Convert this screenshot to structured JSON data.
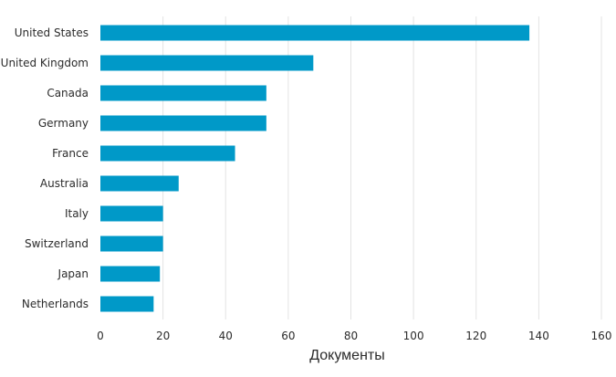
{
  "chart_data": {
    "type": "bar",
    "orientation": "horizontal",
    "categories": [
      "United States",
      "United Kingdom",
      "Canada",
      "Germany",
      "France",
      "Australia",
      "Italy",
      "Switzerland",
      "Japan",
      "Netherlands"
    ],
    "values": [
      137,
      68,
      53,
      53,
      43,
      25,
      20,
      20,
      19,
      17
    ],
    "xlabel": "Документы",
    "ylabel": "",
    "xlim": [
      0,
      160
    ],
    "xticks": [
      0,
      20,
      40,
      60,
      80,
      100,
      120,
      140,
      160
    ],
    "grid": true,
    "legend": "none",
    "bar_color": "#0099c8"
  }
}
